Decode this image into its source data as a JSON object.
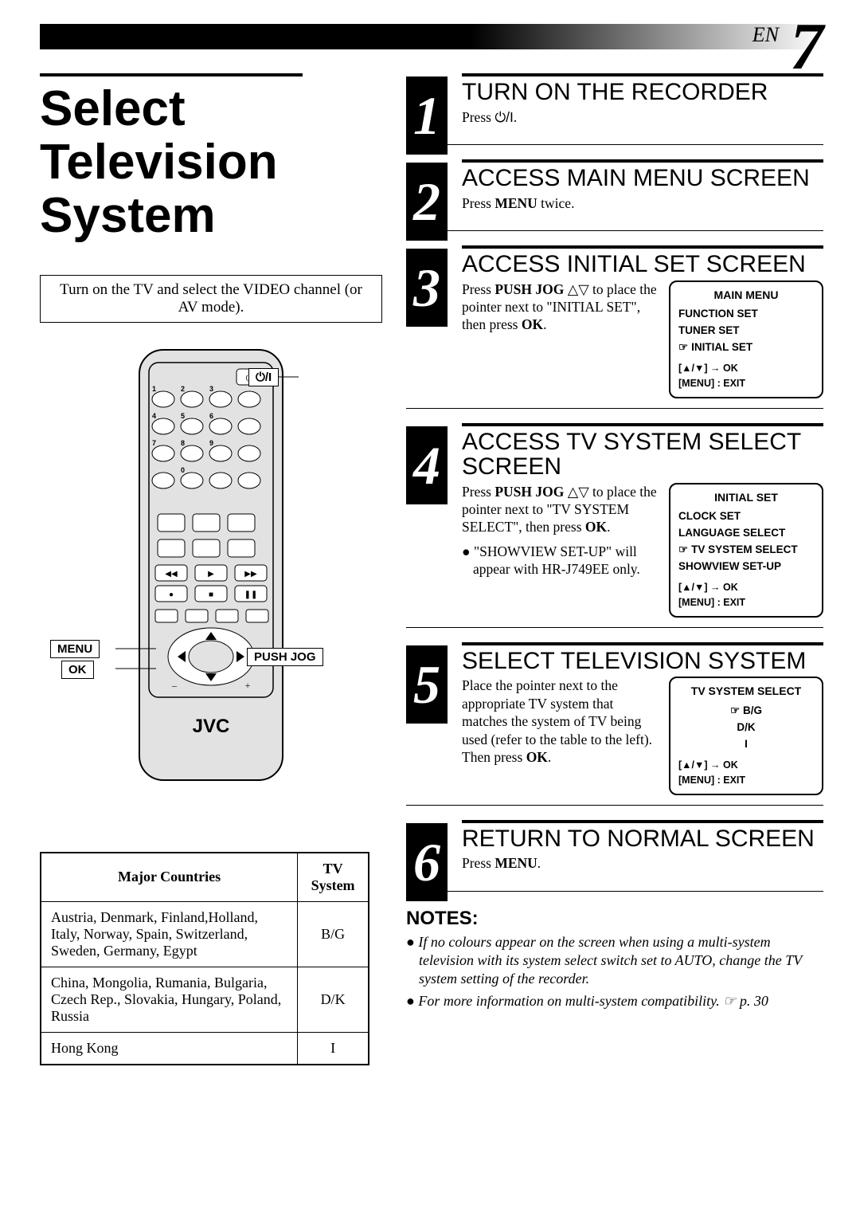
{
  "page": {
    "lang": "EN",
    "number": "7"
  },
  "title": "Select Television System",
  "instruction": "Turn on the TV and select the VIDEO channel (or AV mode).",
  "remote": {
    "brand": "JVC",
    "callouts": {
      "power": "⏻/I",
      "menu": "MENU",
      "ok": "OK",
      "pushjog": "PUSH JOG"
    }
  },
  "table": {
    "headers": [
      "Major Countries",
      "TV System"
    ],
    "rows": [
      [
        "Austria, Denmark, Finland,Holland, Italy, Norway, Spain, Switzerland, Sweden, Germany, Egypt",
        "B/G"
      ],
      [
        "China, Mongolia, Rumania, Bulgaria, Czech Rep., Slovakia, Hungary, Poland, Russia",
        "D/K"
      ],
      [
        "Hong Kong",
        "I"
      ]
    ]
  },
  "steps": [
    {
      "n": "1",
      "title": "TURN ON THE RECORDER",
      "text_html": "Press <span class='power-sym'>⏻/I</span>."
    },
    {
      "n": "2",
      "title": "ACCESS MAIN MENU SCREEN",
      "text_html": "Press <span class='bold'>MENU</span> twice."
    },
    {
      "n": "3",
      "title": "ACCESS INITIAL SET SCREEN",
      "text_html": "Press <span class='bold'>PUSH JOG</span> <span class='tri'>△▽</span> to place the pointer next to \"INITIAL SET\", then press <span class='bold'>OK</span>.",
      "menu": {
        "title": "MAIN MENU",
        "items": [
          "FUNCTION SET",
          "TUNER SET"
        ],
        "pointer_item": "INITIAL SET",
        "nav": "[▲/▼] → OK<br>[MENU] : EXIT"
      }
    },
    {
      "n": "4",
      "title": "ACCESS TV SYSTEM SELECT SCREEN",
      "text_html": "Press <span class='bold'>PUSH JOG</span> <span class='tri'>△▽</span> to place the pointer next to \"TV SYSTEM SELECT\", then press <span class='bold'>OK</span>.",
      "bullet": "\"SHOWVIEW SET-UP\" will appear with HR-J749EE only.",
      "menu": {
        "title": "INITIAL SET",
        "items": [
          "CLOCK SET",
          "LANGUAGE SELECT"
        ],
        "pointer_item": "TV SYSTEM SELECT",
        "after_items": [
          "SHOWVIEW SET-UP"
        ],
        "nav": "[▲/▼] → OK<br>[MENU] : EXIT"
      }
    },
    {
      "n": "5",
      "title": "SELECT TELEVISION SYSTEM",
      "text_html": "Place the pointer next to the appropriate TV system that matches the system of TV being used (refer to the table to the left). Then press <span class='bold'>OK</span>.",
      "menu": {
        "title": "TV SYSTEM SELECT",
        "pointer_item": "B/G",
        "after_items": [
          "D/K",
          "I"
        ],
        "center": true,
        "nav": "[▲/▼] → OK<br>[MENU] : EXIT"
      }
    },
    {
      "n": "6",
      "title": "RETURN TO NORMAL SCREEN",
      "text_html": "Press <span class='bold'>MENU</span>."
    }
  ],
  "notes": {
    "title": "NOTES:",
    "items": [
      "If no colours appear on the screen when using a multi-system television with its system select switch set to AUTO, change the TV system setting of the recorder.",
      "For more information on multi-system compatibility. ☞ p. 30"
    ]
  },
  "colors": {
    "black": "#000000",
    "white": "#ffffff",
    "remote_fill": "#e2e2e2"
  }
}
